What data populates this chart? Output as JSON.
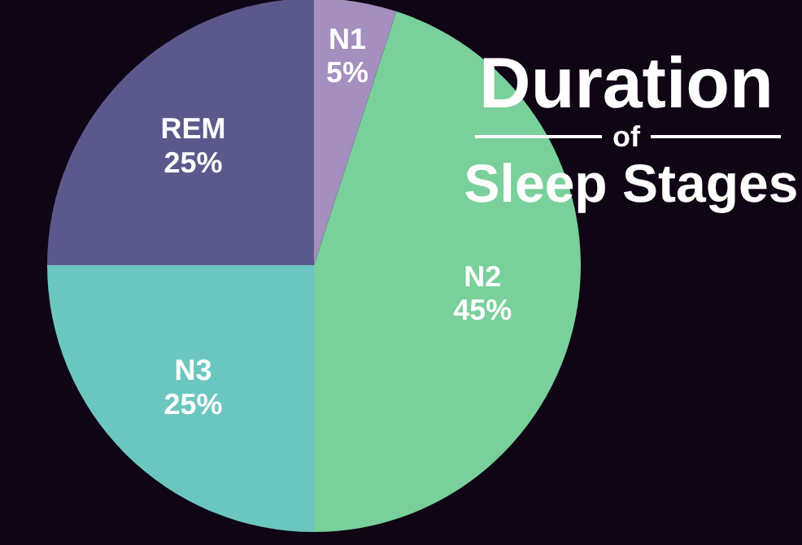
{
  "chart_data": {
    "type": "pie",
    "title": "Duration of Sleep Stages",
    "categories": [
      "N1",
      "N2",
      "N3",
      "REM"
    ],
    "values": [
      5,
      45,
      25,
      25
    ],
    "value_labels": [
      "5%",
      "45%",
      "25%",
      "25%"
    ],
    "colors": [
      "#a48fbf",
      "#79d09b",
      "#6cc6c0",
      "#5b598c"
    ]
  }
}
